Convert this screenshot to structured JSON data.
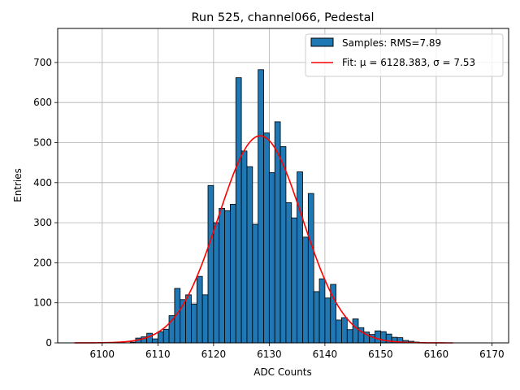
{
  "chart_data": {
    "type": "histogram",
    "title": "Run 525, channel066, Pedestal",
    "xlabel": "ADC Counts",
    "ylabel": "Entries",
    "xlim": [
      6092,
      6173
    ],
    "ylim": [
      0,
      785
    ],
    "xticks": [
      6100,
      6110,
      6120,
      6130,
      6140,
      6150,
      6160,
      6170
    ],
    "yticks": [
      0,
      100,
      200,
      300,
      400,
      500,
      600,
      700
    ],
    "grid": true,
    "legend_position": "upper-right",
    "legend": {
      "samples_label": "Samples: RMS=7.89",
      "fit_label": "Fit: μ = 6128.383, σ = 7.53"
    },
    "colors": {
      "bars": "#1f77b4",
      "bar_edge": "#000000",
      "fit": "#ff0000",
      "grid": "#b0b0b0"
    },
    "bins": {
      "start": 6100,
      "width": 1,
      "counts": [
        0,
        0,
        0,
        0,
        0,
        2,
        12,
        15,
        24,
        10,
        28,
        34,
        68,
        136,
        108,
        120,
        97,
        166,
        120,
        393,
        300,
        336,
        330,
        346,
        662,
        479,
        440,
        296,
        682,
        524,
        425,
        552,
        490,
        350,
        312,
        427,
        264,
        373,
        128,
        160,
        112,
        146,
        57,
        63,
        33,
        60,
        38,
        27,
        21,
        30,
        28,
        22,
        14,
        13,
        6,
        4,
        2,
        1,
        0,
        0
      ]
    },
    "fit": {
      "mu": 6128.383,
      "sigma": 7.53,
      "amplitude": 517,
      "x_range": [
        6095,
        6163
      ]
    }
  }
}
